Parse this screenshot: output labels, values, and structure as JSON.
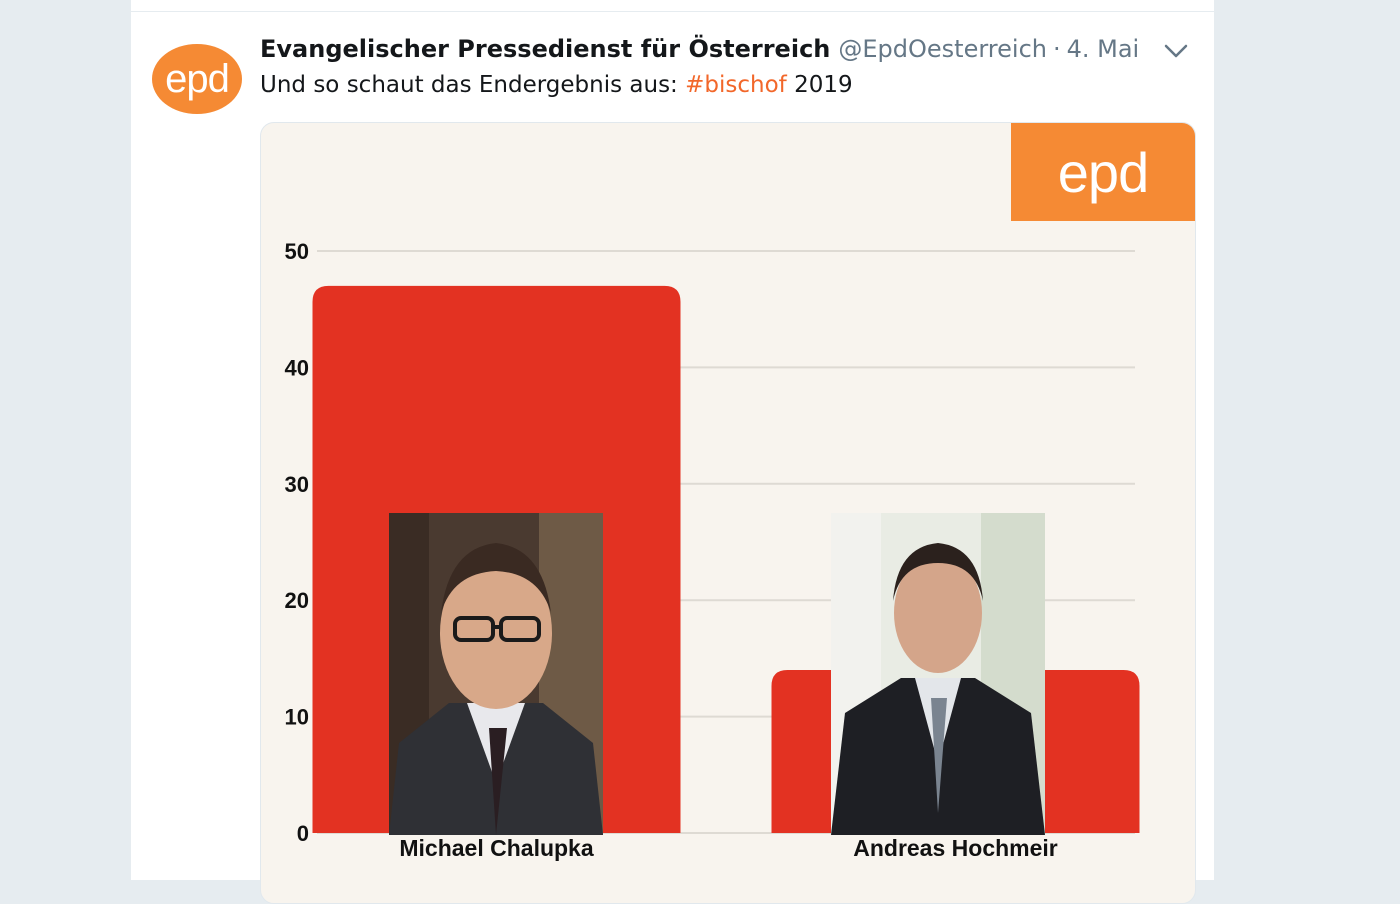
{
  "tweet": {
    "author_name": "Evangelischer Pressedienst für Österreich",
    "author_handle": "@EpdOesterreich",
    "separator": "·",
    "date": "4. Mai",
    "text_before": "Und so schaut das Endergebnis aus: ",
    "hashtag": "#bischof",
    "text_after": " 2019",
    "avatar_text": "epd"
  },
  "media": {
    "logo_text": "epd"
  },
  "colors": {
    "brand_orange": "#f58a34",
    "bar_red": "#e33222",
    "hashtag": "#f2672a"
  },
  "chart_data": {
    "type": "bar",
    "categories": [
      "Michael Chalupka",
      "Andreas Hochmeir"
    ],
    "values": [
      47,
      14
    ],
    "ylim": [
      0,
      50
    ],
    "yticks": [
      "0",
      "10",
      "20",
      "30",
      "40",
      "50"
    ],
    "grid": true,
    "title": "",
    "xlabel": "",
    "ylabel": ""
  }
}
